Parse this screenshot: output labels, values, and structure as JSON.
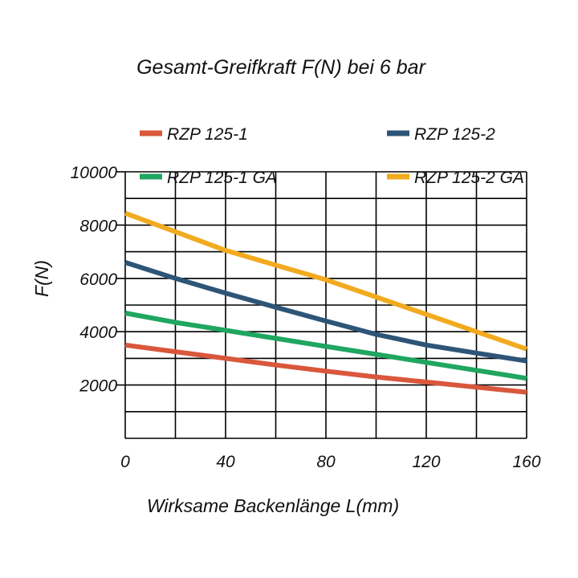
{
  "chart_data": {
    "type": "line",
    "title": "Gesamt-Greifkraft F(N) bei 6 bar",
    "xlabel": "Wirksame Backenlänge L(mm)",
    "ylabel": "F(N)",
    "xlim": [
      0,
      160
    ],
    "ylim": [
      0,
      10000
    ],
    "x_ticks": [
      "0",
      "40",
      "80",
      "120",
      "160"
    ],
    "y_ticks": [
      "2000",
      "4000",
      "6000",
      "8000",
      "10000"
    ],
    "grid": true,
    "legend_position": "top",
    "x": [
      0,
      20,
      40,
      60,
      80,
      100,
      120,
      140,
      160
    ],
    "series": [
      {
        "name": "RZP 125-1",
        "color": "#d9573b",
        "values": [
          3500,
          3250,
          3000,
          2750,
          2520,
          2300,
          2110,
          1920,
          1730
        ]
      },
      {
        "name": "RZP 125-2",
        "color": "#2d5577",
        "values": [
          6600,
          6000,
          5450,
          4920,
          4400,
          3900,
          3500,
          3200,
          2900
        ]
      },
      {
        "name": "RZP 125-1 GA",
        "color": "#1fa660",
        "values": [
          4700,
          4350,
          4050,
          3750,
          3450,
          3150,
          2850,
          2550,
          2250
        ]
      },
      {
        "name": "RZP 125-2 GA",
        "color": "#f2aa1f",
        "values": [
          8450,
          7750,
          7050,
          6500,
          5950,
          5300,
          4650,
          4000,
          3350
        ]
      }
    ]
  }
}
